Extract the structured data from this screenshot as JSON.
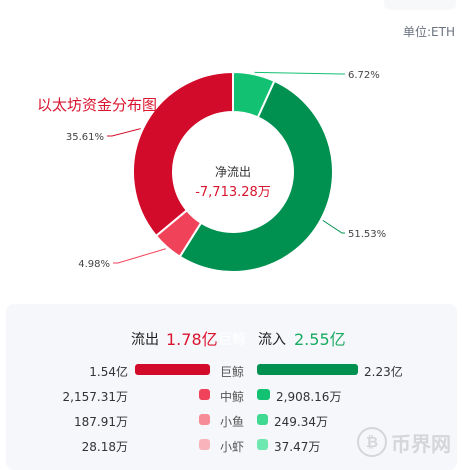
{
  "unit_label": "单位:ETH",
  "chart_title": "以太坊资金分布图",
  "center_label": "净流出",
  "center_value": "-7,713.28万",
  "colors": {
    "outflow": "#d20b2a",
    "outflow_mid": "#f0435a",
    "outflow_small": "#f58c98",
    "outflow_tiny": "#f8b3bb",
    "inflow": "#009050",
    "inflow_mid": "#13c172",
    "inflow_small": "#3fd991",
    "inflow_tiny": "#6ee7b0"
  },
  "chart_data": {
    "type": "pie",
    "donut": true,
    "slices": [
      {
        "label": "6.72%",
        "value": 6.72,
        "color": "#13c172"
      },
      {
        "label": "51.53%",
        "value": 51.53,
        "color": "#009050"
      },
      {
        "label": "4.98%",
        "value": 4.98,
        "color": "#f0435a"
      },
      {
        "label": "35.61%",
        "value": 35.61,
        "color": "#d20b2a"
      }
    ]
  },
  "totals": {
    "outflow_label": "流出",
    "outflow_value": "1.78亿",
    "center_label": "巨鲸",
    "inflow_label": "流入",
    "inflow_value": "2.55亿"
  },
  "rows": [
    {
      "category": "巨鲸",
      "outflow": "1.54亿",
      "inflow": "2.23亿"
    },
    {
      "category": "中鲸",
      "outflow": "2,157.31万",
      "inflow": "2,908.16万"
    },
    {
      "category": "小鱼",
      "outflow": "187.91万",
      "inflow": "249.34万"
    },
    {
      "category": "小虾",
      "outflow": "28.18万",
      "inflow": "37.47万"
    }
  ],
  "watermark": {
    "text": "币界网",
    "icon": "bitcoin-icon",
    "icon_glyph": "₿"
  }
}
